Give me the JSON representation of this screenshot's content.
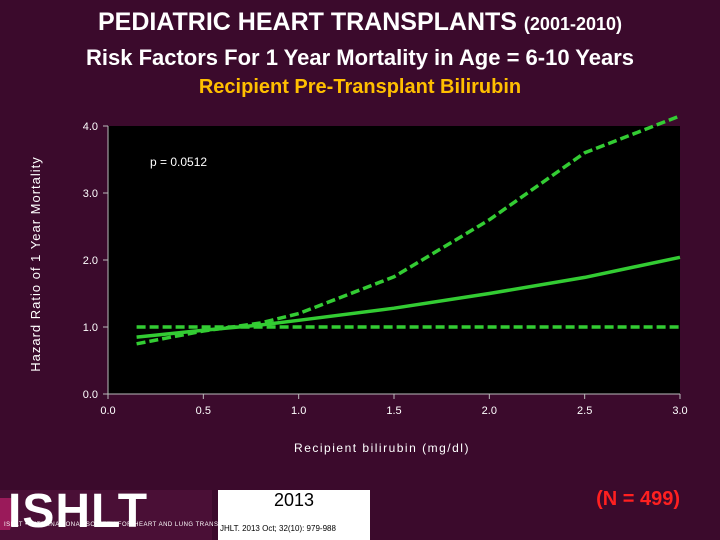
{
  "header": {
    "title_main": "PEDIATRIC HEART TRANSPLANTS",
    "title_years": "(2001-2010)",
    "subtitle": "Risk Factors For 1 Year Mortality in Age = 6-10 Years",
    "variable": "Recipient Pre-Transplant Bilirubin"
  },
  "footer": {
    "logo_text": "ISHLT",
    "logo_subtext": "ISHLT • INTERNATIONAL SOCIETY FOR HEART AND LUNG TRANSPLANTATION",
    "year": "2013",
    "citation": "JHLT. 2013 Oct; 32(10): 979-988",
    "n_label": "(N = 499)"
  },
  "colors": {
    "background": "#3b0a2c",
    "plot_background": "#000000",
    "line": "#33cc33",
    "title": "#ffffff",
    "accent": "#ffbf00",
    "n_label": "#ff2020"
  },
  "chart_data": {
    "type": "line",
    "title": "",
    "xlabel": "Recipient bilirubin (mg/dl)",
    "ylabel": "Hazard Ratio of 1 Year Mortality",
    "xlim": [
      0,
      3
    ],
    "ylim": [
      0,
      4
    ],
    "x_ticks": [
      "0.0",
      "0.5",
      "1.0",
      "1.5",
      "2.0",
      "2.5",
      "3.0"
    ],
    "y_ticks": [
      "0.0",
      "1.0",
      "2.0",
      "3.0",
      "4.0"
    ],
    "annotation": "p = 0.0512",
    "grid": false,
    "x": [
      0.15,
      0.5,
      0.8,
      1.0,
      1.5,
      2.0,
      2.5,
      3.0
    ],
    "series": [
      {
        "style": "solid",
        "values": [
          0.85,
          0.95,
          1.03,
          1.1,
          1.28,
          1.5,
          1.74,
          2.04
        ]
      },
      {
        "style": "dashed",
        "values": [
          0.75,
          0.94,
          1.06,
          1.2,
          1.75,
          2.6,
          3.6,
          4.15
        ]
      },
      {
        "style": "dashed",
        "values": [
          1.0,
          1.0,
          1.0,
          1.0,
          1.0,
          1.0,
          1.0,
          1.0
        ]
      }
    ]
  }
}
